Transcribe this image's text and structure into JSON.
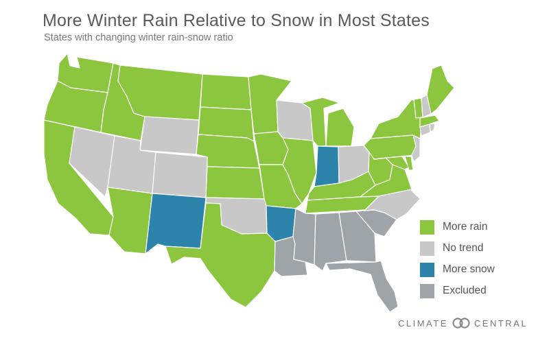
{
  "title": "More Winter Rain Relative to Snow in Most States",
  "subtitle": "States with changing winter rain-snow ratio",
  "colors": {
    "more_rain": "#8cc63f",
    "no_trend": "#c8c8c8",
    "more_snow": "#2d84aa",
    "excluded": "#9fa4a8",
    "border": "#ffffff"
  },
  "legend": [
    {
      "key": "more_rain",
      "label": "More rain"
    },
    {
      "key": "no_trend",
      "label": "No trend"
    },
    {
      "key": "more_snow",
      "label": "More snow"
    },
    {
      "key": "excluded",
      "label": "Excluded"
    }
  ],
  "categories": {
    "more_rain": [
      "WA",
      "OR",
      "CA",
      "ID",
      "MT",
      "ND",
      "SD",
      "NE",
      "KS",
      "MN",
      "IA",
      "MO",
      "IL",
      "MI",
      "KY",
      "TN",
      "WV",
      "VA",
      "MD",
      "DE",
      "PA",
      "NY",
      "VT",
      "ME",
      "MA",
      "AZ",
      "TX"
    ],
    "no_trend": [
      "NV",
      "UT",
      "WY",
      "CO",
      "OK",
      "WI",
      "OH",
      "NC",
      "NJ",
      "CT",
      "RI",
      "NH"
    ],
    "more_snow": [
      "NM",
      "AR",
      "IN"
    ],
    "excluded": [
      "LA",
      "MS",
      "AL",
      "GA",
      "SC",
      "FL"
    ]
  },
  "logo": {
    "left": "CLIMATE",
    "right": "CENTRAL"
  }
}
